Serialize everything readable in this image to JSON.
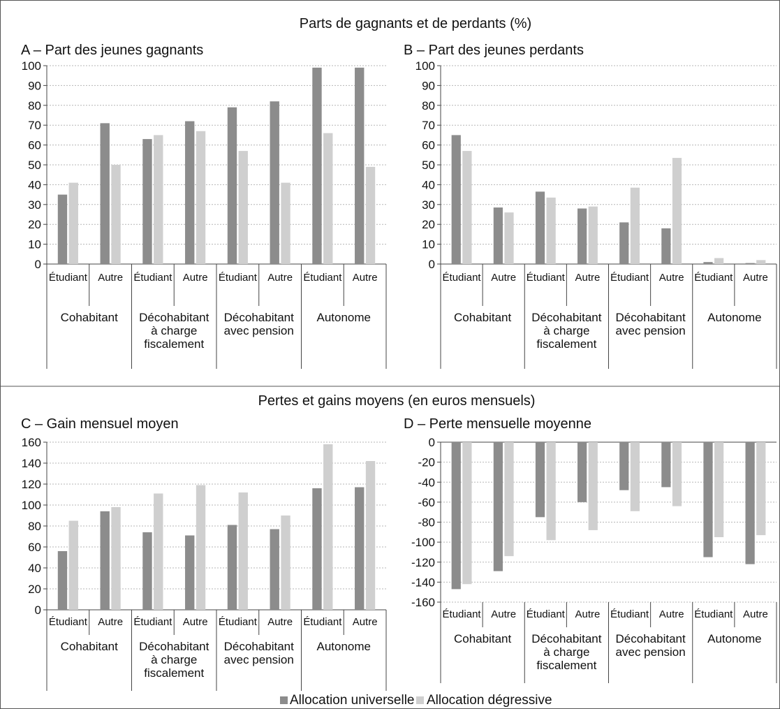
{
  "section_titles": {
    "top": "Parts de gagnants et de perdants (%)",
    "bottom": "Pertes et gains moyens (en euros mensuels)"
  },
  "legend": [
    {
      "label": "Allocation universelle",
      "color": "#8c8c8c"
    },
    {
      "label": "Allocation dégressive",
      "color": "#cfcfcf"
    }
  ],
  "colors": {
    "universelle": "#8c8c8c",
    "degressive": "#cfcfcf"
  },
  "chart_data": [
    {
      "type": "bar",
      "title": "A – Part des jeunes gagnants",
      "categories": [
        "Étudiant",
        "Autre",
        "Étudiant",
        "Autre",
        "Étudiant",
        "Autre",
        "Étudiant",
        "Autre"
      ],
      "groups": [
        "Cohabitant",
        "Décohabitant\nà charge\nfiscalement",
        "Décohabitant\navec pension",
        "Autonome"
      ],
      "series": [
        {
          "name": "Allocation universelle",
          "values": [
            35,
            71,
            63,
            72,
            79,
            82,
            99,
            99
          ]
        },
        {
          "name": "Allocation dégressive",
          "values": [
            41,
            50,
            65,
            67,
            57,
            41,
            66,
            49
          ]
        }
      ],
      "ylim": [
        0,
        100
      ],
      "yticks": [
        0,
        10,
        20,
        30,
        40,
        50,
        60,
        70,
        80,
        90,
        100
      ],
      "grid": true
    },
    {
      "type": "bar",
      "title": "B – Part des jeunes perdants",
      "categories": [
        "Étudiant",
        "Autre",
        "Étudiant",
        "Autre",
        "Étudiant",
        "Autre",
        "Étudiant",
        "Autre"
      ],
      "groups": [
        "Cohabitant",
        "Décohabitant\nà charge\nfiscalement",
        "Décohabitant\navec pension",
        "Autonome"
      ],
      "series": [
        {
          "name": "Allocation universelle",
          "values": [
            65,
            28.5,
            36.5,
            28,
            21,
            18,
            1,
            0.5
          ]
        },
        {
          "name": "Allocation dégressive",
          "values": [
            57,
            26,
            33.5,
            29,
            38.5,
            53.5,
            3,
            2
          ]
        }
      ],
      "ylim": [
        0,
        100
      ],
      "yticks": [
        0,
        10,
        20,
        30,
        40,
        50,
        60,
        70,
        80,
        90,
        100
      ],
      "grid": true
    },
    {
      "type": "bar",
      "title": "C – Gain mensuel moyen",
      "categories": [
        "Étudiant",
        "Autre",
        "Étudiant",
        "Autre",
        "Étudiant",
        "Autre",
        "Étudiant",
        "Autre"
      ],
      "groups": [
        "Cohabitant",
        "Décohabitant\nà charge\nfiscalement",
        "Décohabitant\navec pension",
        "Autonome"
      ],
      "series": [
        {
          "name": "Allocation universelle",
          "values": [
            56,
            94,
            74,
            71,
            81,
            77,
            116,
            117
          ]
        },
        {
          "name": "Allocation dégressive",
          "values": [
            85,
            98,
            111,
            119,
            112,
            90,
            158,
            142
          ]
        }
      ],
      "ylim": [
        0,
        160
      ],
      "yticks": [
        0,
        20,
        40,
        60,
        80,
        100,
        120,
        140,
        160
      ],
      "grid": true
    },
    {
      "type": "bar",
      "title": "D – Perte mensuelle moyenne",
      "categories": [
        "Étudiant",
        "Autre",
        "Étudiant",
        "Autre",
        "Étudiant",
        "Autre",
        "Étudiant",
        "Autre"
      ],
      "groups": [
        "Cohabitant",
        "Décohabitant\nà charge\nfiscalement",
        "Décohabitant\navec pension",
        "Autonome"
      ],
      "series": [
        {
          "name": "Allocation universelle",
          "values": [
            -147,
            -129,
            -75,
            -60,
            -48,
            -45,
            -115,
            -122
          ]
        },
        {
          "name": "Allocation dégressive",
          "values": [
            -142,
            -114,
            -98,
            -88,
            -69,
            -64,
            -95,
            -93
          ]
        }
      ],
      "ylim": [
        -160,
        0
      ],
      "yticks": [
        0,
        -20,
        -40,
        -60,
        -80,
        -100,
        -120,
        -140,
        -160
      ],
      "grid": true
    }
  ]
}
